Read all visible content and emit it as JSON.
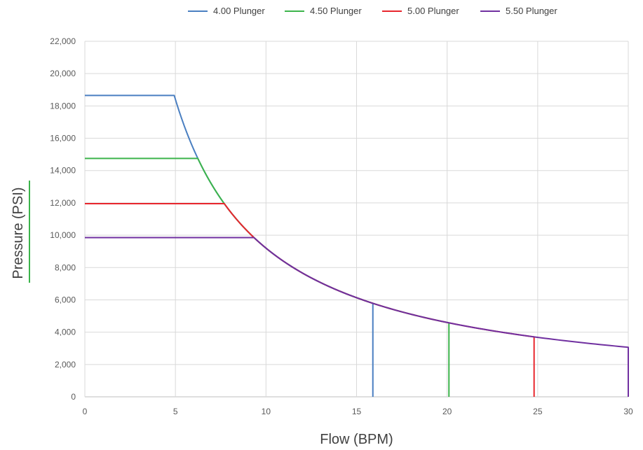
{
  "chart_data": {
    "type": "line",
    "xlabel": "Flow (BPM)",
    "ylabel": "Pressure (PSI)",
    "xlim": [
      0,
      30
    ],
    "ylim": [
      0,
      22000
    ],
    "x_ticks": [
      "0",
      "5",
      "10",
      "15",
      "20",
      "25",
      "30"
    ],
    "y_ticks": [
      "0",
      "2,000",
      "4,000",
      "6,000",
      "8,000",
      "10,000",
      "12,000",
      "14,000",
      "16,000",
      "18,000",
      "20,000",
      "22,000"
    ],
    "grid": true,
    "legend_position": "top",
    "power_constant_bpm_psi": 92000,
    "series": [
      {
        "name": "4.00 Plunger",
        "color": "#4a7fc1",
        "max_pressure": 18650,
        "max_flow": 15.9
      },
      {
        "name": "4.50 Plunger",
        "color": "#3cb44b",
        "max_pressure": 14750,
        "max_flow": 20.1
      },
      {
        "name": "5.00 Plunger",
        "color": "#e8262d",
        "max_pressure": 11950,
        "max_flow": 24.8
      },
      {
        "name": "5.50 Plunger",
        "color": "#7030a0",
        "max_pressure": 9850,
        "max_flow": 30.0
      }
    ]
  }
}
